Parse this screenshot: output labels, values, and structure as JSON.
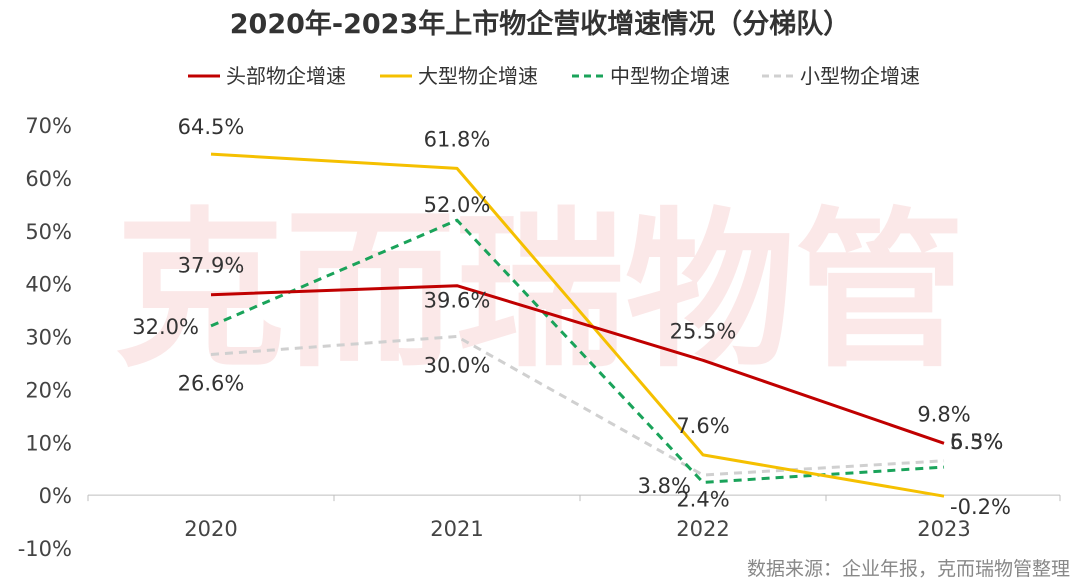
{
  "chart_data": {
    "type": "line",
    "title": "2020年-2023年上市物企营收增速情况（分梯队）",
    "categories": [
      "2020",
      "2021",
      "2022",
      "2023"
    ],
    "ylim": [
      -10,
      70
    ],
    "yticks": [
      "-10%",
      "0%",
      "10%",
      "20%",
      "30%",
      "40%",
      "50%",
      "60%",
      "70%"
    ],
    "grid": false,
    "legend_position": "top",
    "series": [
      {
        "name": "头部物企增速",
        "values": [
          37.9,
          39.6,
          25.5,
          9.8
        ],
        "labels": [
          "37.9%",
          "39.6%",
          "25.5%",
          "9.8%"
        ],
        "color": "#c00000",
        "dash": "solid"
      },
      {
        "name": "大型物企增速",
        "values": [
          64.5,
          61.8,
          7.6,
          -0.2
        ],
        "labels": [
          "64.5%",
          "61.8%",
          "7.6%",
          "-0.2%"
        ],
        "color": "#f5c000",
        "dash": "solid"
      },
      {
        "name": "中型物企增速",
        "values": [
          32.0,
          52.0,
          2.4,
          5.3
        ],
        "labels": [
          "32.0%",
          "52.0%",
          "2.4%",
          "5.3%"
        ],
        "color": "#1aa35a",
        "dash": "dashed"
      },
      {
        "name": "小型物企增速",
        "values": [
          26.6,
          30.0,
          3.8,
          6.5
        ],
        "labels": [
          "26.6%",
          "30.0%",
          "3.8%",
          "6.5%"
        ],
        "color": "#d0d0d0",
        "dash": "dashed"
      }
    ],
    "watermark": "克而瑞物管",
    "source": "数据来源：企业年报，克而瑞物管整理"
  }
}
